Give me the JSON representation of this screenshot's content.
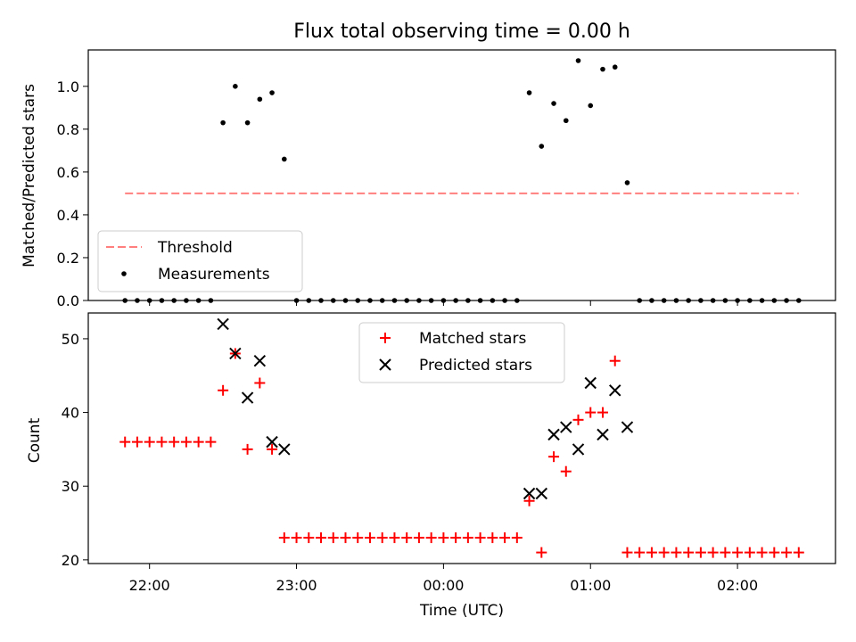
{
  "chart_data": [
    {
      "type": "scatter",
      "title": "Flux total observing time = 0.00 h",
      "xlabel": "",
      "ylabel": "Matched/Predicted stars",
      "xlim": [
        "21:35",
        "02:40"
      ],
      "ylim": [
        0,
        1.17
      ],
      "yticks": [
        0.0,
        0.2,
        0.4,
        0.6,
        0.8,
        1.0
      ],
      "ytick_labels": [
        "0.0",
        "0.2",
        "0.4",
        "0.6",
        "0.8",
        "1.0"
      ],
      "legend_position": "lower-left",
      "threshold": {
        "name": "Threshold",
        "y": 0.5,
        "x_start": "21:50",
        "x_end": "02:25",
        "color": "#ff7f7f",
        "style": "dashed"
      },
      "series": [
        {
          "name": "Measurements",
          "marker": "dot",
          "color": "#000000",
          "x": [
            "21:50",
            "21:55",
            "22:00",
            "22:05",
            "22:10",
            "22:15",
            "22:20",
            "22:25",
            "22:30",
            "22:35",
            "22:40",
            "22:45",
            "22:50",
            "22:55",
            "23:00",
            "23:05",
            "23:10",
            "23:15",
            "23:20",
            "23:25",
            "23:30",
            "23:35",
            "23:40",
            "23:45",
            "23:50",
            "23:55",
            "00:00",
            "00:05",
            "00:10",
            "00:15",
            "00:20",
            "00:25",
            "00:30",
            "00:35",
            "00:40",
            "00:45",
            "00:50",
            "00:55",
            "01:00",
            "01:05",
            "01:10",
            "01:15",
            "01:20",
            "01:25",
            "01:30",
            "01:35",
            "01:40",
            "01:45",
            "01:50",
            "01:55",
            "02:00",
            "02:05",
            "02:10",
            "02:15",
            "02:20",
            "02:25"
          ],
          "values": [
            0,
            0,
            0,
            0,
            0,
            0,
            0,
            0,
            0.83,
            1.0,
            0.83,
            0.94,
            0.97,
            0.66,
            0,
            0,
            0,
            0,
            0,
            0,
            0,
            0,
            0,
            0,
            0,
            0,
            0,
            0,
            0,
            0,
            0,
            0,
            0,
            0.97,
            0.72,
            0.92,
            0.84,
            1.12,
            0.91,
            1.08,
            1.09,
            0.55,
            0,
            0,
            0,
            0,
            0,
            0,
            0,
            0,
            0,
            0,
            0,
            0,
            0,
            0
          ]
        }
      ]
    },
    {
      "type": "scatter",
      "title": "",
      "xlabel": "Time (UTC)",
      "ylabel": "Count",
      "xlim": [
        "21:35",
        "02:40"
      ],
      "ylim": [
        19.5,
        53.5
      ],
      "xticks": [
        "22:00",
        "23:00",
        "00:00",
        "01:00",
        "02:00"
      ],
      "yticks": [
        20,
        30,
        40,
        50
      ],
      "ytick_labels": [
        "20",
        "30",
        "40",
        "50"
      ],
      "legend_position": "upper-center",
      "series": [
        {
          "name": "Matched stars",
          "marker": "plus",
          "color": "#ff0000",
          "x": [
            "21:50",
            "21:55",
            "22:00",
            "22:05",
            "22:10",
            "22:15",
            "22:20",
            "22:25",
            "22:30",
            "22:35",
            "22:40",
            "22:45",
            "22:50",
            "22:55",
            "23:00",
            "23:05",
            "23:10",
            "23:15",
            "23:20",
            "23:25",
            "23:30",
            "23:35",
            "23:40",
            "23:45",
            "23:50",
            "23:55",
            "00:00",
            "00:05",
            "00:10",
            "00:15",
            "00:20",
            "00:25",
            "00:30",
            "00:35",
            "00:40",
            "00:45",
            "00:50",
            "00:55",
            "01:00",
            "01:05",
            "01:10",
            "01:15",
            "01:20",
            "01:25",
            "01:30",
            "01:35",
            "01:40",
            "01:45",
            "01:50",
            "01:55",
            "02:00",
            "02:05",
            "02:10",
            "02:15",
            "02:20",
            "02:25"
          ],
          "values": [
            36,
            36,
            36,
            36,
            36,
            36,
            36,
            36,
            43,
            48,
            35,
            44,
            35,
            23,
            23,
            23,
            23,
            23,
            23,
            23,
            23,
            23,
            23,
            23,
            23,
            23,
            23,
            23,
            23,
            23,
            23,
            23,
            23,
            28,
            21,
            34,
            32,
            39,
            40,
            40,
            47,
            21,
            21,
            21,
            21,
            21,
            21,
            21,
            21,
            21,
            21,
            21,
            21,
            21,
            21,
            21
          ]
        },
        {
          "name": "Predicted stars",
          "marker": "x",
          "color": "#000000",
          "x": [
            "22:30",
            "22:35",
            "22:40",
            "22:45",
            "22:50",
            "22:55",
            "00:35",
            "00:40",
            "00:45",
            "00:50",
            "00:55",
            "01:00",
            "01:05",
            "01:10",
            "01:15"
          ],
          "values": [
            52,
            48,
            42,
            47,
            36,
            35,
            29,
            29,
            37,
            38,
            35,
            44,
            37,
            43,
            38
          ]
        }
      ]
    }
  ]
}
